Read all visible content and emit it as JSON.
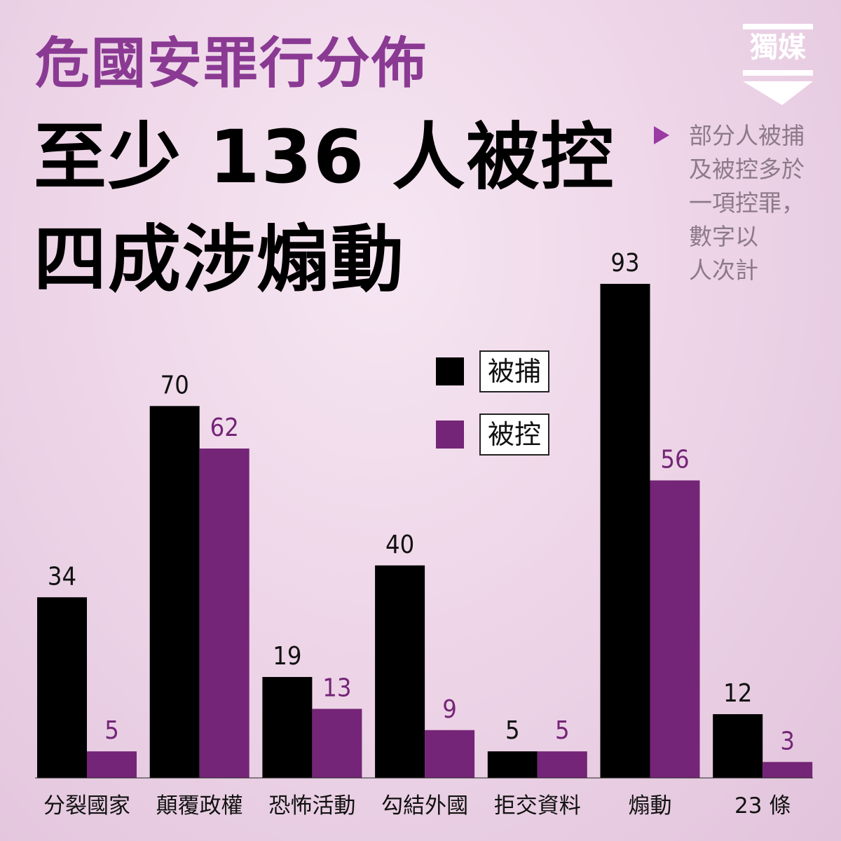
{
  "kicker": "危國安罪行分佈",
  "headline": {
    "line1": "至少 136 人被控",
    "line2": "四成涉煽動"
  },
  "logo": {
    "text": "獨媒"
  },
  "note": {
    "lines": [
      "部分人被捕",
      "及被控多於",
      "一項控罪，",
      "數字以",
      "人次計"
    ]
  },
  "colors": {
    "arrested": "#000000",
    "charged": "#742577",
    "title": "#8a3a93",
    "note": "#8c7a8a",
    "marker": "#9a3aa3"
  },
  "chart_data": {
    "type": "bar",
    "categories": [
      "分裂國家",
      "顛覆政權",
      "恐怖活動",
      "勾結外國",
      "拒交資料",
      "煽動",
      "23 條"
    ],
    "series": [
      {
        "name": "被捕",
        "values": [
          34,
          70,
          19,
          40,
          5,
          93,
          12
        ]
      },
      {
        "name": "被控",
        "values": [
          5,
          62,
          13,
          9,
          5,
          56,
          3
        ]
      }
    ],
    "ylim": [
      0,
      93
    ],
    "legend": "center"
  }
}
